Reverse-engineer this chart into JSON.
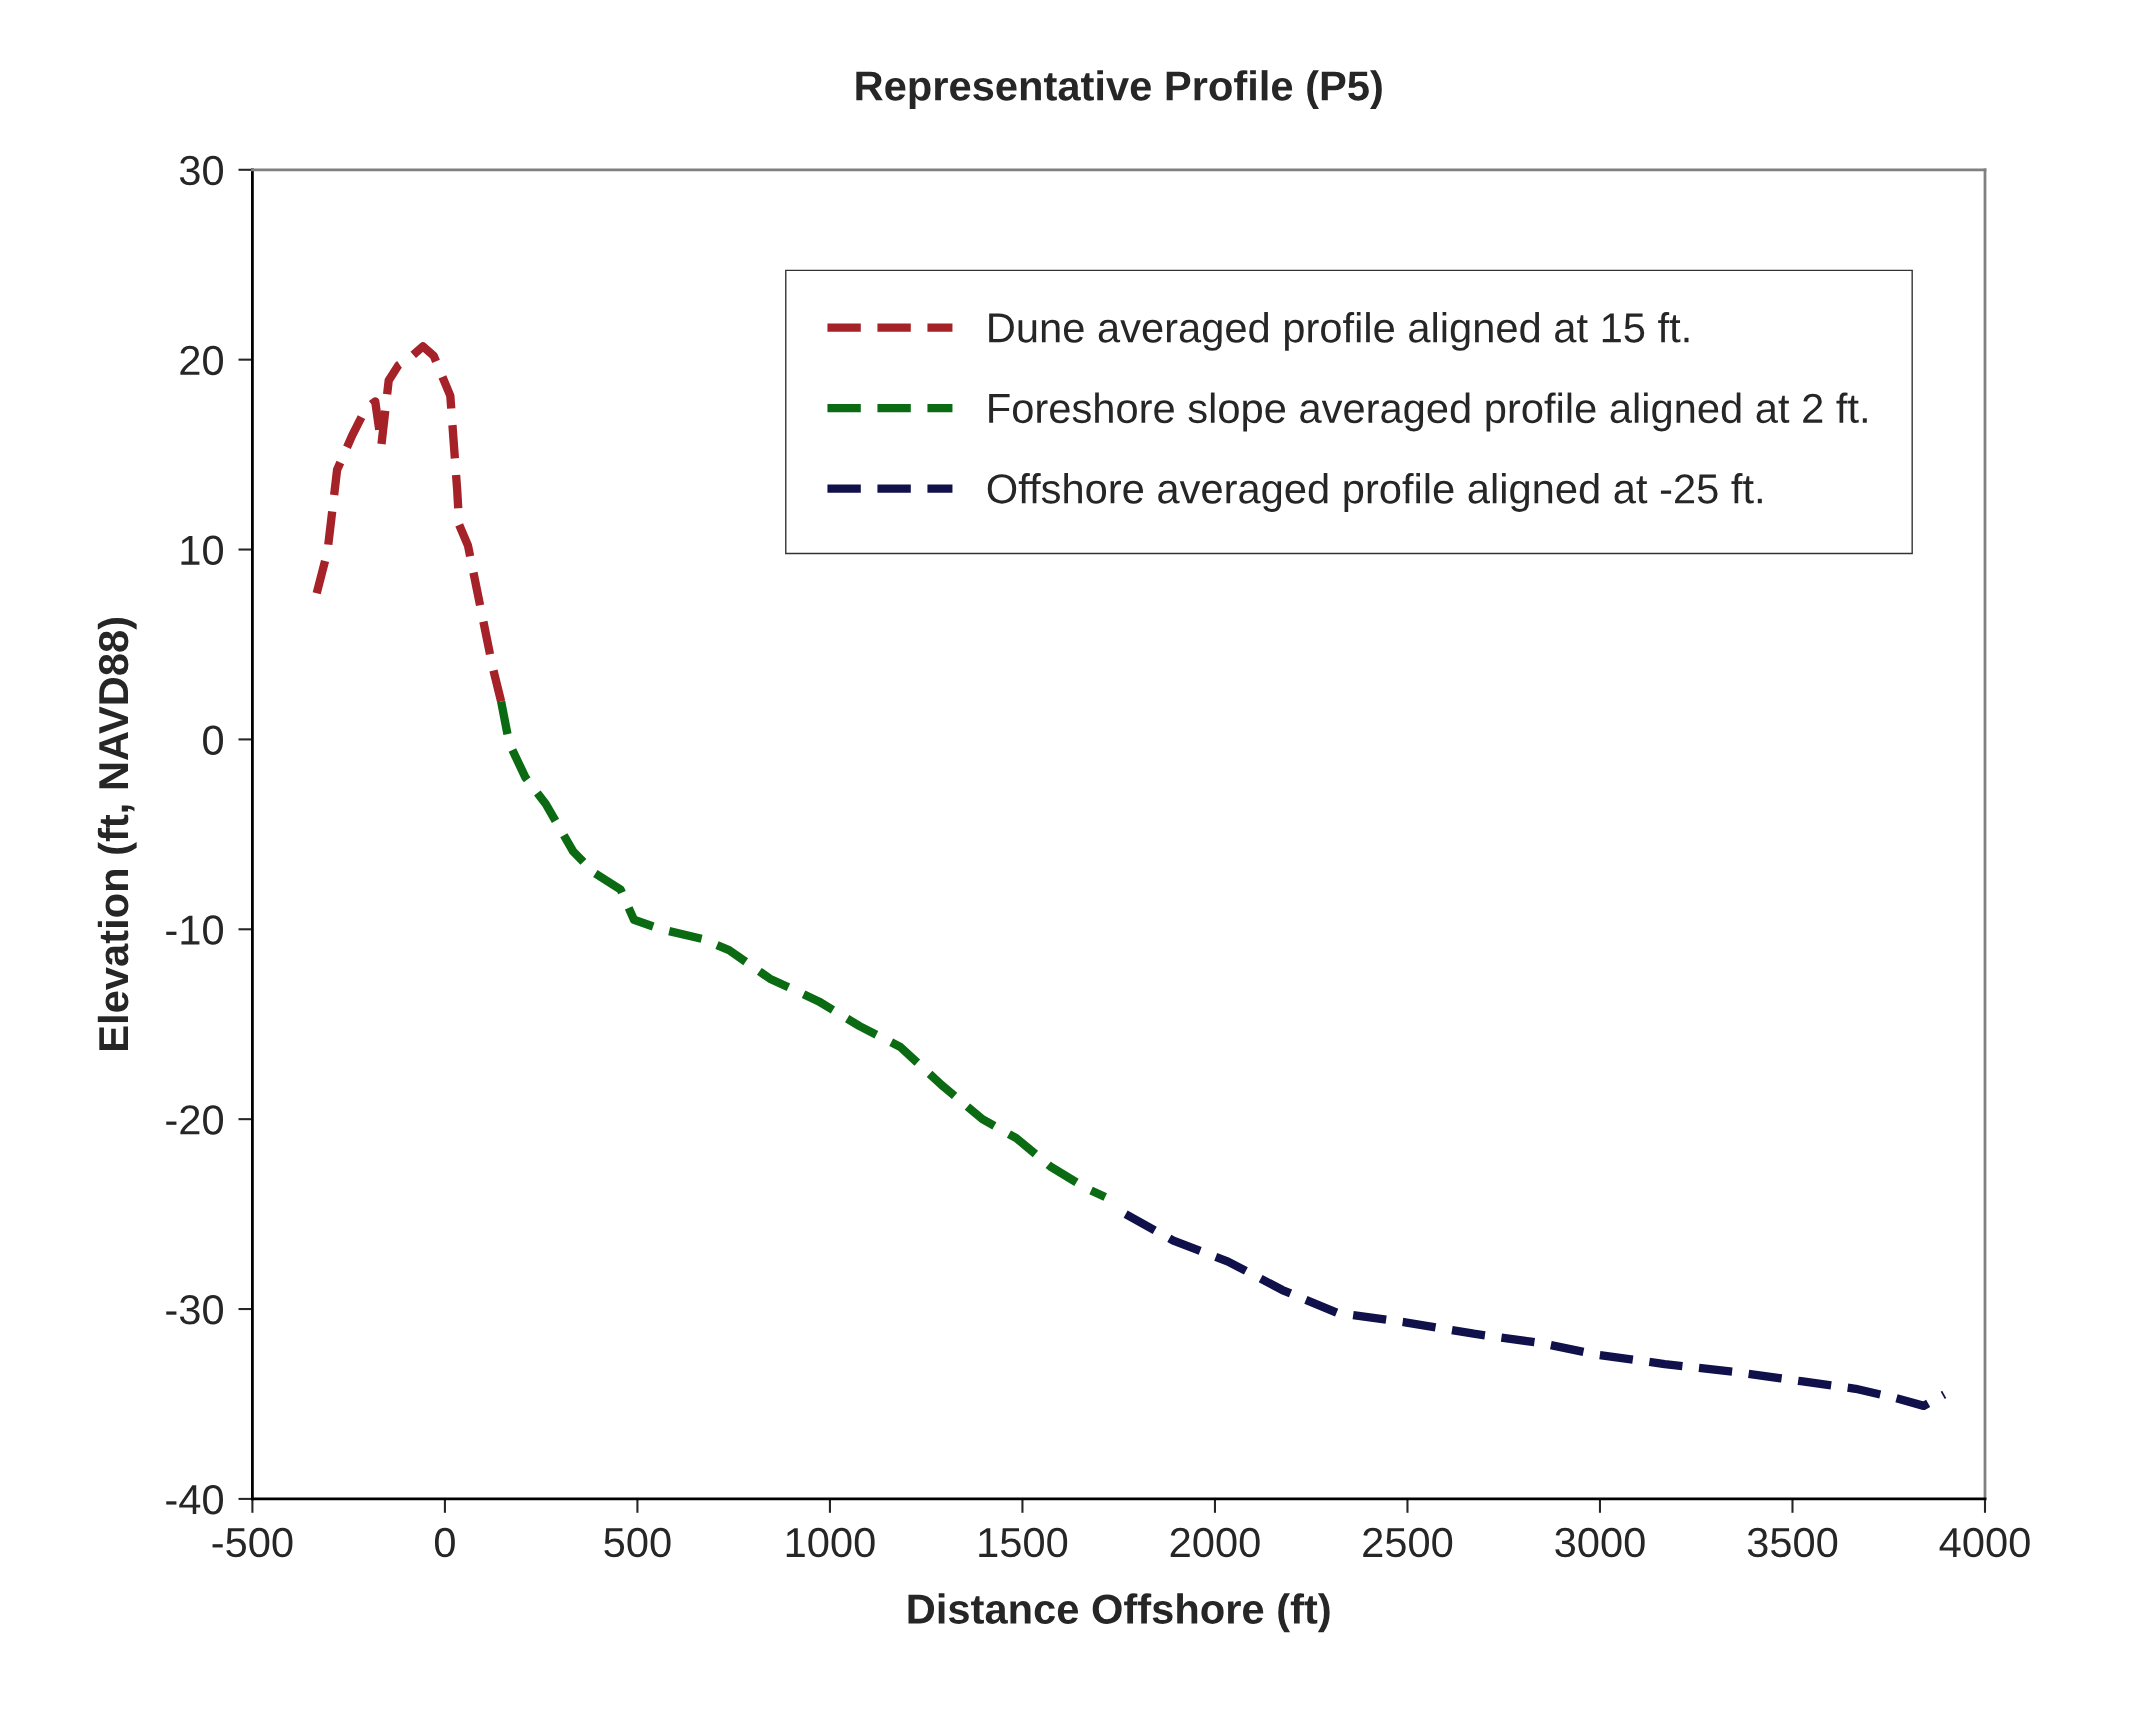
{
  "chart_data": {
    "type": "line",
    "title": "Representative Profile (P5)",
    "xlabel": "Distance Offshore (ft)",
    "ylabel": "Elevation (ft, NAVD88)",
    "xlim": [
      -500,
      4000
    ],
    "xticks": [
      -500,
      0,
      500,
      1000,
      1500,
      2000,
      2500,
      3000,
      3500,
      4000
    ],
    "ylim": [
      -40,
      30
    ],
    "yticks": [
      -40,
      -30,
      -20,
      -10,
      0,
      10,
      20,
      30
    ],
    "grid": false,
    "legend": "top right",
    "line_style": "dashed",
    "marker": "none",
    "series": [
      {
        "name": "Dune averaged profile aligned at 15 ft.",
        "color": "#a52228",
        "x": [
          -333,
          -305,
          -280,
          -241,
          -206,
          -181,
          -165,
          -146,
          -121,
          -85,
          -57,
          -29,
          14,
          32,
          37,
          60,
          96,
          124,
          146
        ],
        "values": [
          7.7,
          9.9,
          14.2,
          16.0,
          17.4,
          17.8,
          15.5,
          18.9,
          19.7,
          20.2,
          20.7,
          20.2,
          18.1,
          13.1,
          11.3,
          10.2,
          6.6,
          3.8,
          2.0
        ]
      },
      {
        "name": "Foreshore slope averaged profile aligned at 2 ft.",
        "color": "#0b6b12",
        "x": [
          146,
          167,
          209,
          262,
          333,
          386,
          456,
          491,
          562,
          667,
          738,
          844,
          971,
          1077,
          1183,
          1290,
          1396,
          1484,
          1573,
          1662,
          1715
        ],
        "values": [
          2.0,
          -0.2,
          -2.0,
          -3.4,
          -5.9,
          -7.0,
          -7.9,
          -9.5,
          -10.0,
          -10.5,
          -11.1,
          -12.6,
          -13.8,
          -15.1,
          -16.2,
          -18.2,
          -20.0,
          -21.0,
          -22.5,
          -23.6,
          -24.1
        ]
      },
      {
        "name": "Offshore averaged profile aligned at -25 ft.",
        "color": "#10104a",
        "x": [
          1768,
          1892,
          2034,
          2175,
          2317,
          2494,
          2672,
          2849,
          2990,
          3168,
          3345,
          3522,
          3664,
          3770,
          3841,
          3894
        ],
        "values": [
          -25.0,
          -26.4,
          -27.5,
          -29.0,
          -30.2,
          -30.7,
          -31.3,
          -31.8,
          -32.4,
          -32.9,
          -33.3,
          -33.8,
          -34.2,
          -34.7,
          -35.1,
          -34.5
        ]
      }
    ]
  }
}
